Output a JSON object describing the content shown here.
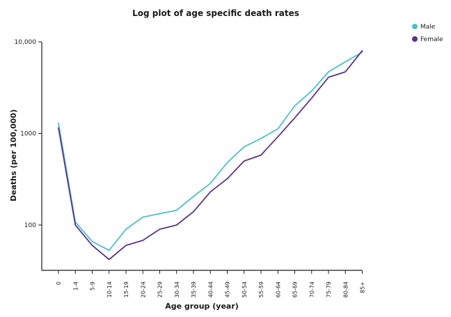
{
  "chart_data": {
    "type": "line",
    "title": "Log plot of age specific death rates",
    "xlabel": "Age group (year)",
    "ylabel": "Deaths (per 100,000)",
    "yscale": "log",
    "ylim": [
      30,
      10000
    ],
    "categories": [
      "0",
      "1-4",
      "5-9",
      "10-14",
      "15-19",
      "20-24",
      "25-29",
      "30-34",
      "35-39",
      "40-44",
      "45-49",
      "50-54",
      "55-59",
      "60-64",
      "65-69",
      "70-74",
      "75-79",
      "80-84",
      "85+"
    ],
    "ytick_values": [
      100,
      1000,
      10000
    ],
    "ytick_labels": [
      "100",
      "1000",
      "10,000"
    ],
    "legend_position": "top-right",
    "series": [
      {
        "name": "Male",
        "color": "#4dbfc9",
        "values": [
          1300,
          108,
          66,
          53,
          90,
          122,
          133,
          145,
          205,
          285,
          480,
          715,
          880,
          1120,
          2000,
          2900,
          4700,
          6050,
          7700
        ]
      },
      {
        "name": "Female",
        "color": "#5a3487",
        "values": [
          1150,
          100,
          60,
          42,
          60,
          68,
          90,
          100,
          140,
          230,
          320,
          500,
          580,
          920,
          1480,
          2430,
          4100,
          4700,
          8000
        ]
      }
    ]
  }
}
